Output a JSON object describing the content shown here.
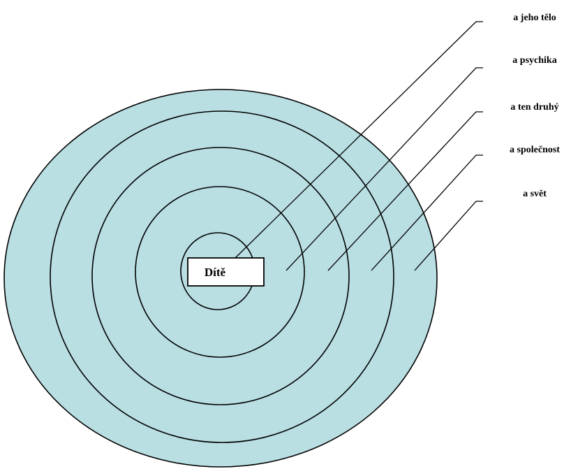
{
  "diagram": {
    "fill_color": "#b9dfe3",
    "center": {
      "label": "Dítě"
    },
    "layers": [
      {
        "label": "a jeho tělo"
      },
      {
        "label": "a psychika"
      },
      {
        "label": "a ten druhý"
      },
      {
        "label": "a společnost"
      },
      {
        "label": "a svět"
      }
    ]
  }
}
